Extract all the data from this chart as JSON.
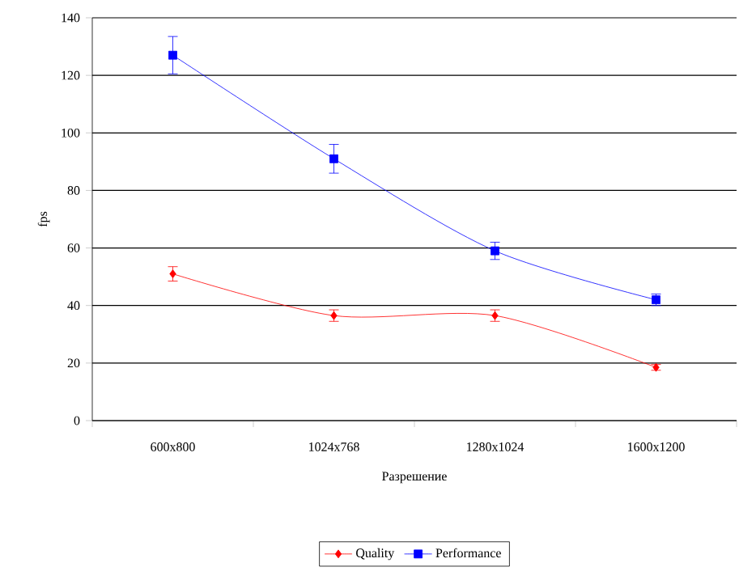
{
  "chart_data": {
    "type": "line",
    "xlabel": "Разрешение",
    "ylabel": "fps",
    "categories": [
      "600x800",
      "1024x768",
      "1280x1024",
      "1600x1200"
    ],
    "series": [
      {
        "name": "Quality",
        "color": "#ff0000",
        "marker": "diamond",
        "values": [
          51,
          36.5,
          36.5,
          18.5
        ],
        "errors": [
          2.5,
          2,
          2,
          1
        ]
      },
      {
        "name": "Performance",
        "color": "#0000ff",
        "marker": "square",
        "values": [
          127,
          91,
          59,
          42
        ],
        "errors": [
          6.5,
          5,
          3,
          2
        ]
      }
    ],
    "ylim": [
      0,
      140
    ],
    "yticks": [
      0,
      20,
      40,
      60,
      80,
      100,
      120,
      140
    ],
    "grid": "y",
    "legend": "bottom",
    "line_style": "solid"
  }
}
